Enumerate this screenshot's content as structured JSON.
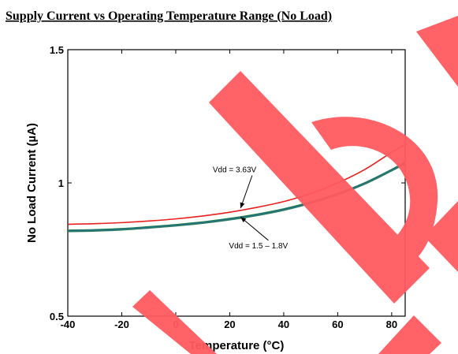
{
  "chart_data": {
    "type": "line",
    "title": "Supply Current vs Operating Temperature Range (No Load)",
    "xlabel": "Temperature (°C)",
    "ylabel": "No Load Current (µA)",
    "xlim": [
      -40,
      85
    ],
    "ylim": [
      0.5,
      1.5
    ],
    "xticks": [
      "-40",
      "-20",
      "0",
      "20",
      "40",
      "60",
      "80"
    ],
    "yticks": [
      "0.5",
      "1",
      "1.5"
    ],
    "grid": false,
    "x": [
      -40,
      -30,
      -20,
      -10,
      0,
      10,
      20,
      30,
      40,
      50,
      60,
      70,
      80,
      85
    ],
    "series": [
      {
        "values": [
          0.845,
          0.847,
          0.851,
          0.857,
          0.865,
          0.876,
          0.89,
          0.908,
          0.93,
          0.96,
          1.0,
          1.05,
          1.115,
          1.145
        ]
      },
      {
        "values": [
          0.822,
          0.824,
          0.828,
          0.835,
          0.843,
          0.853,
          0.866,
          0.882,
          0.902,
          0.928,
          0.96,
          1.0,
          1.05,
          1.078
        ]
      },
      {
        "values": [
          0.82,
          0.822,
          0.826,
          0.833,
          0.841,
          0.851,
          0.864,
          0.88,
          0.9,
          0.926,
          0.958,
          0.998,
          1.048,
          1.075
        ]
      },
      {
        "values": [
          0.818,
          0.82,
          0.824,
          0.831,
          0.839,
          0.849,
          0.862,
          0.878,
          0.898,
          0.924,
          0.956,
          0.996,
          1.046,
          1.072
        ]
      }
    ],
    "annotations": [
      {
        "text": "Vdd = 3.63V",
        "x": 21,
        "y": 1.04,
        "arrow_to": [
          24,
          0.905
        ]
      },
      {
        "text": "Vdd = 1.5 – 1.8V",
        "x": 27,
        "y": 0.755,
        "arrow_to": [
          24,
          0.872
        ]
      }
    ],
    "colors": {
      "s0": "#e8201e",
      "s1": "#1e8a2e",
      "s2": "#1f5fa8",
      "s3": "#2a7a6a",
      "watermark": "#ff5a5f"
    }
  }
}
